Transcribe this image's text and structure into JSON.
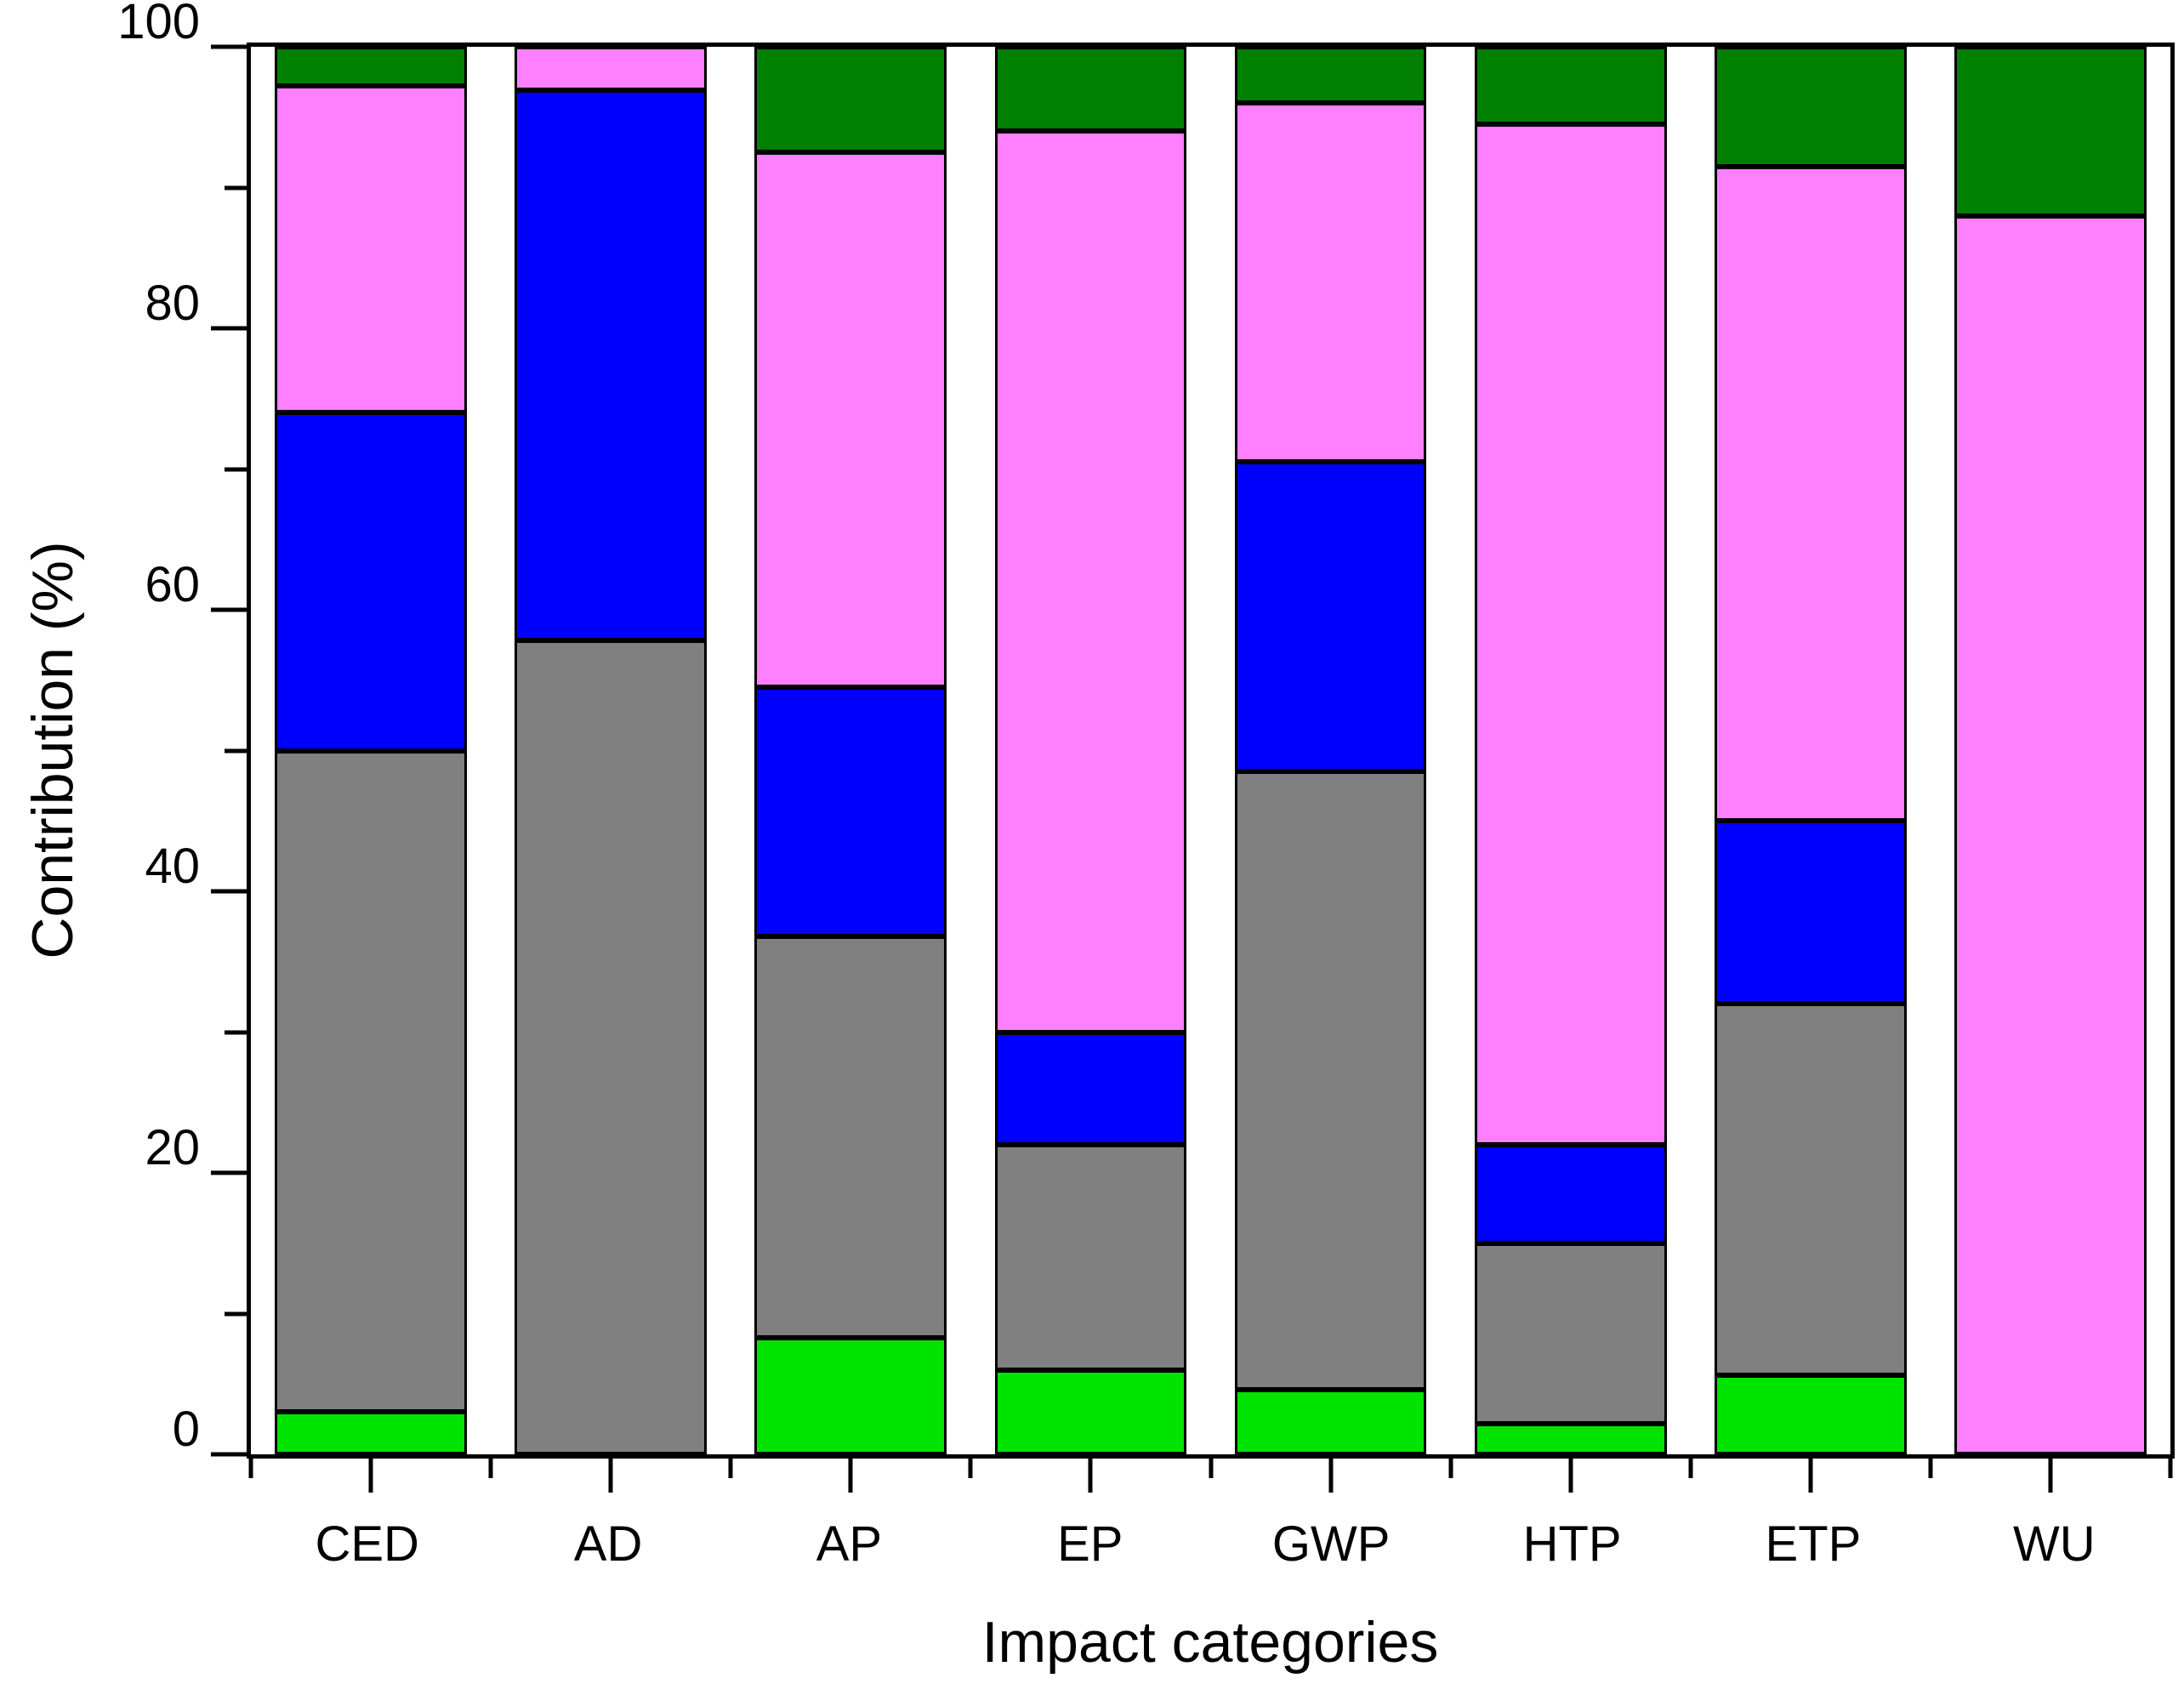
{
  "figure": {
    "background_color": "#ffffff",
    "frame_color": "#000000"
  },
  "y_axis": {
    "title": "Contribution (%)",
    "major_ticks": [
      0,
      20,
      40,
      60,
      80,
      100
    ],
    "minor_ticks": [
      10,
      30,
      50,
      70,
      90
    ],
    "range": [
      0,
      100
    ]
  },
  "x_axis": {
    "title": "Impact categories"
  },
  "chart_data": {
    "type": "bar",
    "stacked": true,
    "orientation": "vertical",
    "title": "",
    "xlabel": "Impact categories",
    "ylabel": "Contribution (%)",
    "ylim": [
      0,
      100
    ],
    "grid": false,
    "legend": false,
    "categories": [
      "CED",
      "AD",
      "AP",
      "EP",
      "GWP",
      "HTP",
      "ETP",
      "WU"
    ],
    "series": [
      {
        "name": "green-segment",
        "color": "#00E400",
        "values": [
          3.0,
          0.0,
          8.3,
          6.0,
          4.6,
          2.2,
          5.6,
          0.0
        ]
      },
      {
        "name": "gray-segment",
        "color": "#808080",
        "values": [
          47.0,
          57.8,
          28.5,
          16.0,
          43.9,
          12.8,
          26.4,
          0.0
        ]
      },
      {
        "name": "blue-segment",
        "color": "#0000FF",
        "values": [
          24.0,
          39.1,
          17.7,
          8.0,
          22.0,
          7.0,
          13.0,
          0.0
        ]
      },
      {
        "name": "pink-segment",
        "color": "#FF80FF",
        "values": [
          23.2,
          3.1,
          38.0,
          64.0,
          25.5,
          72.5,
          46.5,
          88.0
        ]
      },
      {
        "name": "dark-green-segment",
        "color": "#008000",
        "values": [
          2.8,
          0.0,
          7.5,
          6.0,
          4.0,
          5.5,
          8.5,
          12.0
        ]
      }
    ]
  }
}
